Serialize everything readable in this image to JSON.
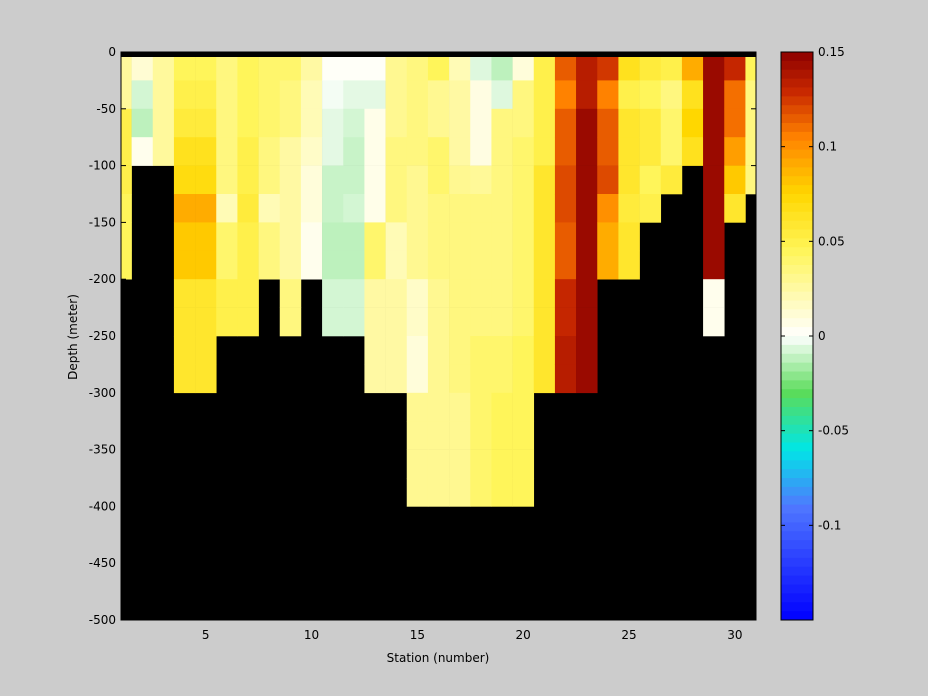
{
  "chart_data": {
    "type": "heatmap",
    "title": "",
    "xlabel": "Station (number)",
    "ylabel": "Depth (meter)",
    "xlim": [
      1,
      31
    ],
    "ylim": [
      -500,
      0
    ],
    "x_ticks": [
      5,
      10,
      15,
      20,
      25,
      30
    ],
    "y_ticks": [
      0,
      -50,
      -100,
      -150,
      -200,
      -250,
      -300,
      -350,
      -400,
      -450,
      -500
    ],
    "colorbar": {
      "range": [
        -0.15,
        0.15
      ],
      "ticks": [
        0.15,
        0.1,
        0.05,
        0,
        -0.05,
        -0.1
      ],
      "colormap": "blue-cyan-green-white-yellow-orange-darkred"
    },
    "depths": [
      -12.5,
      -37.5,
      -62.5,
      -87.5,
      -112.5,
      -137.5,
      -162.5,
      -187.5,
      -212.5,
      -237.5,
      -262.5,
      -287.5,
      -312.5,
      -337.5,
      -362.5,
      -387.5
    ],
    "stations": [
      {
        "station": 1,
        "values": [
          0.027,
          0.027,
          0.05,
          0.05,
          0.05,
          0.045,
          0.045,
          0.045
        ]
      },
      {
        "station": 2,
        "values": [
          0.012,
          -0.008,
          -0.012,
          0.005
        ]
      },
      {
        "station": 3,
        "values": [
          0.027,
          0.027,
          0.027,
          0.027
        ]
      },
      {
        "station": 4,
        "values": [
          0.045,
          0.05,
          0.055,
          0.065,
          0.07,
          0.09,
          0.08,
          0.08,
          0.06,
          0.06,
          0.06,
          0.06
        ]
      },
      {
        "station": 5,
        "values": [
          0.045,
          0.05,
          0.055,
          0.065,
          0.07,
          0.09,
          0.08,
          0.08,
          0.06,
          0.06,
          0.06,
          0.06
        ]
      },
      {
        "station": 6,
        "values": [
          0.035,
          0.035,
          0.035,
          0.035,
          0.035,
          0.02,
          0.04,
          0.04,
          0.05,
          0.05
        ]
      },
      {
        "station": 7,
        "values": [
          0.045,
          0.045,
          0.045,
          0.05,
          0.05,
          0.055,
          0.05,
          0.05,
          0.05,
          0.05
        ]
      },
      {
        "station": 8,
        "values": [
          0.04,
          0.04,
          0.04,
          0.035,
          0.035,
          0.02,
          0.035,
          0.035
        ]
      },
      {
        "station": 9,
        "values": [
          0.04,
          0.035,
          0.035,
          0.025,
          0.025,
          0.025,
          0.025,
          0.025,
          0.035,
          0.035
        ]
      },
      {
        "station": 10,
        "values": [
          0.025,
          0.02,
          0.02,
          0.015,
          0.01,
          0.01,
          0.005,
          0.005
        ]
      },
      {
        "station": 11,
        "values": [
          0.002,
          -0.002,
          -0.005,
          -0.005,
          -0.01,
          -0.01,
          -0.012,
          -0.012,
          -0.008,
          -0.008
        ]
      },
      {
        "station": 12,
        "values": [
          0.002,
          -0.005,
          -0.008,
          -0.01,
          -0.01,
          -0.008,
          -0.012,
          -0.012,
          -0.008,
          -0.008
        ]
      },
      {
        "station": 13,
        "values": [
          0.002,
          -0.005,
          0.006,
          0.006,
          0.006,
          0.006,
          0.04,
          0.04,
          0.025,
          0.025,
          0.025,
          0.025
        ]
      },
      {
        "station": 14,
        "values": [
          0.03,
          0.03,
          0.03,
          0.035,
          0.035,
          0.035,
          0.02,
          0.02,
          0.025,
          0.025,
          0.025,
          0.025
        ]
      },
      {
        "station": 15,
        "values": [
          0.035,
          0.035,
          0.035,
          0.035,
          0.03,
          0.03,
          0.03,
          0.03,
          0.015,
          0.015,
          0.01,
          0.01,
          0.03,
          0.03,
          0.03,
          0.03
        ]
      },
      {
        "station": 16,
        "values": [
          0.045,
          0.03,
          0.03,
          0.04,
          0.04,
          0.035,
          0.035,
          0.035,
          0.03,
          0.03,
          0.03,
          0.03,
          0.03,
          0.03,
          0.03,
          0.03
        ]
      },
      {
        "station": 17,
        "values": [
          0.02,
          0.025,
          0.025,
          0.025,
          0.03,
          0.035,
          0.035,
          0.035,
          0.035,
          0.035,
          0.035,
          0.035,
          0.03,
          0.03,
          0.03,
          0.03
        ]
      },
      {
        "station": 18,
        "values": [
          -0.006,
          0.008,
          0.008,
          0.008,
          0.028,
          0.035,
          0.035,
          0.035,
          0.035,
          0.035,
          0.04,
          0.04,
          0.04,
          0.04,
          0.04,
          0.04
        ]
      },
      {
        "station": 19,
        "values": [
          -0.012,
          -0.006,
          0.035,
          0.035,
          0.035,
          0.035,
          0.035,
          0.035,
          0.035,
          0.035,
          0.04,
          0.04,
          0.045,
          0.045,
          0.045,
          0.045
        ]
      },
      {
        "station": 20,
        "values": [
          0.01,
          0.035,
          0.035,
          0.04,
          0.04,
          0.04,
          0.04,
          0.04,
          0.04,
          0.04,
          0.045,
          0.045,
          0.045,
          0.045,
          0.045,
          0.045
        ]
      },
      {
        "station": 21,
        "values": [
          0.05,
          0.05,
          0.05,
          0.05,
          0.06,
          0.06,
          0.06,
          0.06,
          0.06,
          0.06,
          0.06,
          0.06
        ]
      },
      {
        "station": 22,
        "values": [
          0.115,
          0.105,
          0.115,
          0.115,
          0.12,
          0.12,
          0.115,
          0.115,
          0.13,
          0.13,
          0.135,
          0.135
        ]
      },
      {
        "station": 23,
        "values": [
          0.135,
          0.135,
          0.145,
          0.145,
          0.145,
          0.145,
          0.145,
          0.145,
          0.145,
          0.145,
          0.145,
          0.145
        ]
      },
      {
        "station": 24,
        "values": [
          0.125,
          0.105,
          0.115,
          0.115,
          0.12,
          0.1,
          0.09,
          0.09
        ]
      },
      {
        "station": 25,
        "values": [
          0.065,
          0.05,
          0.06,
          0.06,
          0.06,
          0.055,
          0.06,
          0.06
        ]
      },
      {
        "station": 26,
        "values": [
          0.055,
          0.045,
          0.055,
          0.055,
          0.045,
          0.05
        ]
      },
      {
        "station": 27,
        "values": [
          0.05,
          0.035,
          0.04,
          0.04,
          0.055
        ]
      },
      {
        "station": 28,
        "values": [
          0.09,
          0.065,
          0.075,
          0.065
        ]
      },
      {
        "station": 29,
        "values": [
          0.145,
          0.145,
          0.145,
          0.145,
          0.145,
          0.145,
          0.145,
          0.145,
          0.005,
          0.005
        ]
      },
      {
        "station": 30,
        "values": [
          0.13,
          0.11,
          0.11,
          0.095,
          0.08,
          0.06
        ]
      },
      {
        "station": 31,
        "values": [
          0.045,
          0.035,
          0.035,
          0.035,
          0.035
        ]
      }
    ]
  }
}
